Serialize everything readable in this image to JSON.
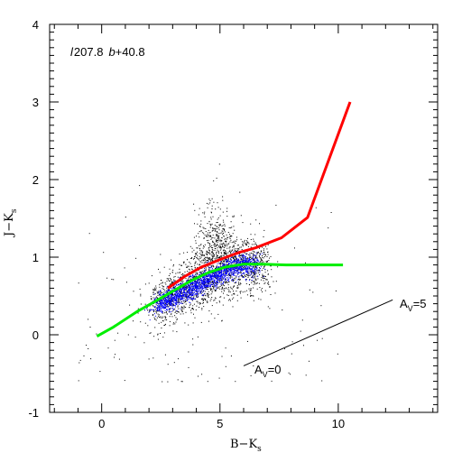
{
  "chart_data": {
    "type": "scatter",
    "title": "",
    "annotation": {
      "l_label": "l",
      "l_value": "207.8",
      "b_label": "b",
      "b_value": "+40.8"
    },
    "xlabel": {
      "main": "B−K",
      "sub": "s"
    },
    "ylabel": {
      "main": "J−K",
      "sub": "s"
    },
    "xlim": [
      -2.2,
      14.2
    ],
    "ylim": [
      -1,
      4
    ],
    "xticks": [
      0,
      5,
      10
    ],
    "yticks": [
      -1,
      0,
      1,
      2,
      3,
      4
    ],
    "grid": false,
    "series": [
      {
        "kind": "curve",
        "color": "#ff0000",
        "x": [
          2.8,
          3.5,
          4.2,
          5.0,
          5.8,
          6.5,
          7.6,
          8.7,
          10.5
        ],
        "y": [
          0.6,
          0.75,
          0.87,
          0.97,
          1.06,
          1.12,
          1.25,
          1.51,
          3.0
        ]
      },
      {
        "kind": "curve",
        "color": "#00ee00",
        "x": [
          -0.2,
          0.5,
          1.5,
          2.2,
          3.0,
          3.8,
          4.5,
          5.2,
          6.0,
          6.8,
          7.8,
          10.2
        ],
        "y": [
          -0.02,
          0.1,
          0.3,
          0.42,
          0.56,
          0.7,
          0.8,
          0.87,
          0.91,
          0.91,
          0.9,
          0.9
        ]
      }
    ],
    "reddening_vector": {
      "x": [
        6.0,
        12.3
      ],
      "y": [
        -0.4,
        0.45
      ],
      "start_label": {
        "main": "A",
        "sub": "V",
        "tail": "=0"
      },
      "end_label": {
        "main": "A",
        "sub": "V",
        "tail": "=5"
      }
    },
    "point_clouds": [
      {
        "color": "#000000",
        "description_free": true
      },
      {
        "color": "#0000ff",
        "description_free": true
      }
    ]
  }
}
